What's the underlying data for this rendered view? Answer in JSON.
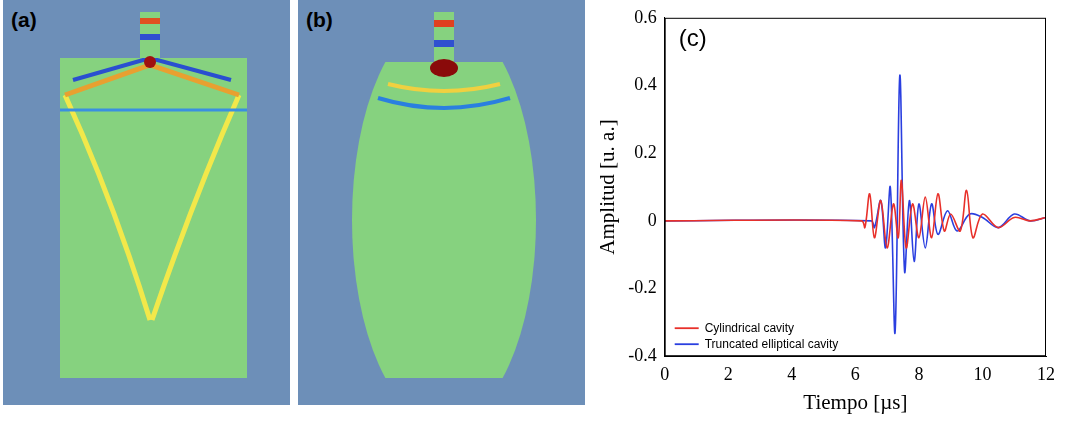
{
  "panels": [
    {
      "label": "(a)"
    },
    {
      "label": "(b)"
    }
  ],
  "chart_data": {
    "type": "line",
    "title": "(c)",
    "xlabel": "Tiempo [µs]",
    "ylabel": "Amplitud [u. a.]",
    "xlim": [
      0,
      12
    ],
    "xticks": [
      0,
      2,
      4,
      6,
      8,
      10,
      12
    ],
    "ylim": [
      -0.4,
      0.6
    ],
    "yticks": [
      -0.4,
      -0.2,
      0,
      0.2,
      0.4,
      0.6
    ],
    "grid": false,
    "legend": "lower left",
    "series": [
      {
        "name": "Cylindrical cavity",
        "color": "#e8302a",
        "x": [
          0,
          6.2,
          6.3,
          6.45,
          6.6,
          6.8,
          7.0,
          7.2,
          7.35,
          7.45,
          7.6,
          7.8,
          8.0,
          8.2,
          8.4,
          8.6,
          8.8,
          9.0,
          9.3,
          9.5,
          9.7,
          10.0,
          10.5,
          11.0,
          11.5,
          12.0
        ],
        "values": [
          0,
          0,
          -0.02,
          0.08,
          -0.05,
          0.06,
          -0.08,
          0.05,
          -0.05,
          0.12,
          -0.08,
          0.05,
          -0.05,
          0.07,
          -0.05,
          0.08,
          -0.03,
          0.02,
          -0.03,
          0.09,
          -0.05,
          0.02,
          -0.02,
          0.01,
          0,
          0.01
        ]
      },
      {
        "name": "Truncated elliptical cavity",
        "color": "#2a3fe0",
        "x": [
          0,
          6.5,
          6.6,
          6.8,
          6.95,
          7.1,
          7.25,
          7.4,
          7.55,
          7.7,
          7.85,
          8.0,
          8.2,
          8.4,
          8.6,
          8.9,
          9.2,
          9.6,
          10.0,
          10.5,
          11.0,
          11.5,
          12.0
        ],
        "values": [
          0,
          0,
          -0.02,
          0.06,
          -0.08,
          0.1,
          -0.33,
          0.43,
          -0.15,
          0.06,
          -0.12,
          0.05,
          -0.08,
          0.05,
          -0.04,
          0.03,
          -0.03,
          0.02,
          0.01,
          -0.02,
          0.02,
          0,
          0.01
        ]
      }
    ]
  }
}
